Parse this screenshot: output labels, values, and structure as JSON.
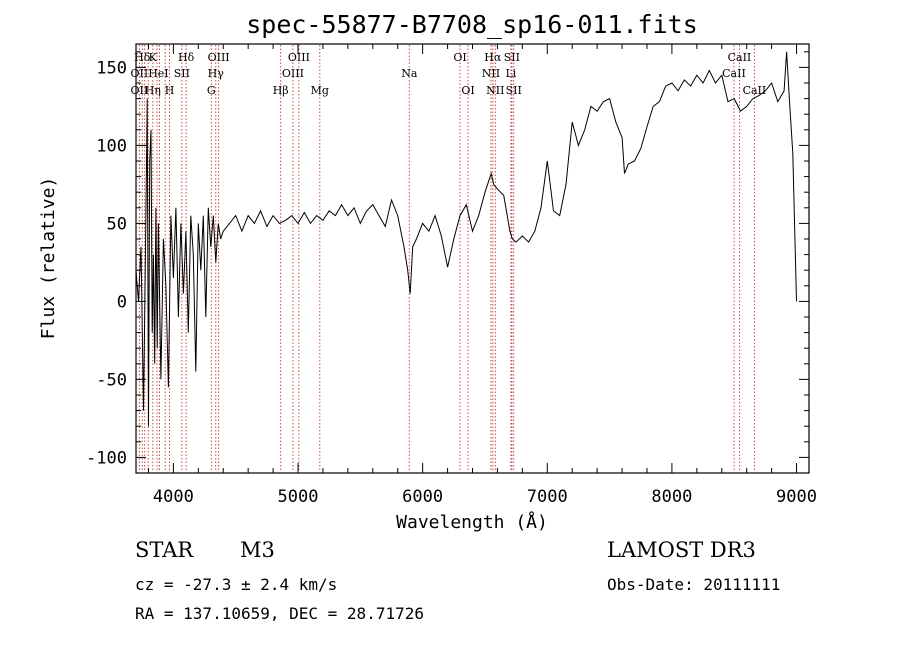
{
  "chart_data": {
    "type": "line",
    "title": "spec-55877-B7708_sp16-011.fits",
    "xlabel": "Wavelength (Å)",
    "ylabel": "Flux (relative)",
    "xlim": [
      3700,
      9100
    ],
    "ylim": [
      -110,
      165
    ],
    "xticks": [
      4000,
      5000,
      6000,
      7000,
      8000,
      9000
    ],
    "yticks": [
      -100,
      -50,
      0,
      50,
      100,
      150
    ],
    "series": [
      {
        "name": "flux",
        "x": [
          3700,
          3720,
          3740,
          3760,
          3780,
          3790,
          3800,
          3810,
          3820,
          3830,
          3840,
          3850,
          3860,
          3870,
          3880,
          3900,
          3920,
          3940,
          3960,
          3980,
          4000,
          4020,
          4040,
          4060,
          4080,
          4100,
          4120,
          4140,
          4160,
          4180,
          4200,
          4220,
          4240,
          4260,
          4280,
          4300,
          4320,
          4340,
          4360,
          4380,
          4400,
          4450,
          4500,
          4550,
          4600,
          4650,
          4700,
          4750,
          4800,
          4850,
          4900,
          4950,
          5000,
          5050,
          5100,
          5150,
          5200,
          5250,
          5300,
          5350,
          5400,
          5450,
          5500,
          5550,
          5600,
          5650,
          5700,
          5750,
          5800,
          5850,
          5880,
          5900,
          5920,
          5950,
          6000,
          6050,
          6100,
          6150,
          6200,
          6250,
          6300,
          6350,
          6400,
          6450,
          6500,
          6550,
          6570,
          6600,
          6650,
          6700,
          6720,
          6750,
          6800,
          6850,
          6900,
          6950,
          7000,
          7050,
          7100,
          7150,
          7200,
          7250,
          7300,
          7350,
          7400,
          7450,
          7500,
          7550,
          7600,
          7620,
          7650,
          7700,
          7750,
          7800,
          7850,
          7900,
          7950,
          8000,
          8050,
          8100,
          8150,
          8200,
          8250,
          8300,
          8350,
          8400,
          8450,
          8500,
          8550,
          8600,
          8650,
          8700,
          8750,
          8800,
          8850,
          8900,
          8920,
          8950,
          8970,
          9000
        ],
        "y": [
          20,
          0,
          35,
          -70,
          60,
          130,
          -80,
          90,
          110,
          -20,
          30,
          -40,
          60,
          -30,
          50,
          -50,
          40,
          10,
          -55,
          55,
          15,
          60,
          -10,
          50,
          5,
          45,
          -20,
          55,
          30,
          -45,
          50,
          20,
          55,
          -10,
          60,
          35,
          55,
          25,
          50,
          40,
          45,
          50,
          55,
          45,
          55,
          50,
          58,
          48,
          55,
          50,
          52,
          55,
          50,
          57,
          50,
          55,
          52,
          58,
          55,
          62,
          55,
          60,
          50,
          58,
          62,
          55,
          48,
          65,
          55,
          35,
          20,
          5,
          35,
          40,
          50,
          45,
          55,
          42,
          22,
          40,
          55,
          62,
          45,
          55,
          70,
          82,
          75,
          72,
          68,
          45,
          40,
          38,
          42,
          38,
          45,
          60,
          90,
          58,
          55,
          75,
          115,
          100,
          110,
          125,
          122,
          128,
          130,
          115,
          105,
          82,
          88,
          90,
          98,
          112,
          125,
          128,
          138,
          140,
          135,
          142,
          138,
          145,
          140,
          148,
          140,
          145,
          128,
          130,
          122,
          125,
          130,
          132,
          135,
          140,
          128,
          135,
          160,
          120,
          95,
          0
        ]
      }
    ],
    "line_labels": [
      {
        "name": "Hδ",
        "x": 3750,
        "row": 1
      },
      {
        "name": "K",
        "x": 3834,
        "row": 1
      },
      {
        "name": "Hδ",
        "x": 4102,
        "row": 1
      },
      {
        "name": "OIII",
        "x": 4363,
        "row": 1
      },
      {
        "name": "OIII",
        "x": 5007,
        "row": 1
      },
      {
        "name": "OI",
        "x": 6300,
        "row": 1
      },
      {
        "name": "Hα",
        "x": 6563,
        "row": 1
      },
      {
        "name": "SII",
        "x": 6716,
        "row": 1
      },
      {
        "name": "CaII",
        "x": 8542,
        "row": 1
      },
      {
        "name": "OII",
        "x": 3727,
        "row": 2
      },
      {
        "name": "HeI",
        "x": 3880,
        "row": 2
      },
      {
        "name": "SII",
        "x": 4068,
        "row": 2
      },
      {
        "name": "Hγ",
        "x": 4340,
        "row": 2
      },
      {
        "name": "OIII",
        "x": 4959,
        "row": 2
      },
      {
        "name": "Na",
        "x": 5893,
        "row": 2
      },
      {
        "name": "NII",
        "x": 6548,
        "row": 2
      },
      {
        "name": "Li",
        "x": 6708,
        "row": 2
      },
      {
        "name": "CaII",
        "x": 8498,
        "row": 2
      },
      {
        "name": "OII",
        "x": 3727,
        "row": 3
      },
      {
        "name": "Hη",
        "x": 3835,
        "row": 3
      },
      {
        "name": "H",
        "x": 3969,
        "row": 3
      },
      {
        "name": "G",
        "x": 4304,
        "row": 3
      },
      {
        "name": "Hβ",
        "x": 4861,
        "row": 3
      },
      {
        "name": "Mg",
        "x": 5175,
        "row": 3
      },
      {
        "name": "OI",
        "x": 6364,
        "row": 3
      },
      {
        "name": "NII",
        "x": 6583,
        "row": 3
      },
      {
        "name": "SII",
        "x": 6731,
        "row": 3
      },
      {
        "name": "CaII",
        "x": 8662,
        "row": 3
      }
    ],
    "marker_lines": [
      3727,
      3750,
      3770,
      3798,
      3835,
      3869,
      3889,
      3934,
      3969,
      4068,
      4102,
      4304,
      4340,
      4363,
      4861,
      4959,
      5007,
      5175,
      5893,
      6300,
      6364,
      6548,
      6563,
      6583,
      6708,
      6716,
      6731,
      8498,
      8542,
      8662
    ]
  },
  "info": {
    "object_class": "STAR",
    "subclass": "M3",
    "survey": "LAMOST DR3",
    "redshift": "cz = -27.3 ± 2.4 km/s",
    "obs_date": "Obs-Date: 20111111",
    "coords": "RA = 137.10659, DEC =  28.71726"
  }
}
